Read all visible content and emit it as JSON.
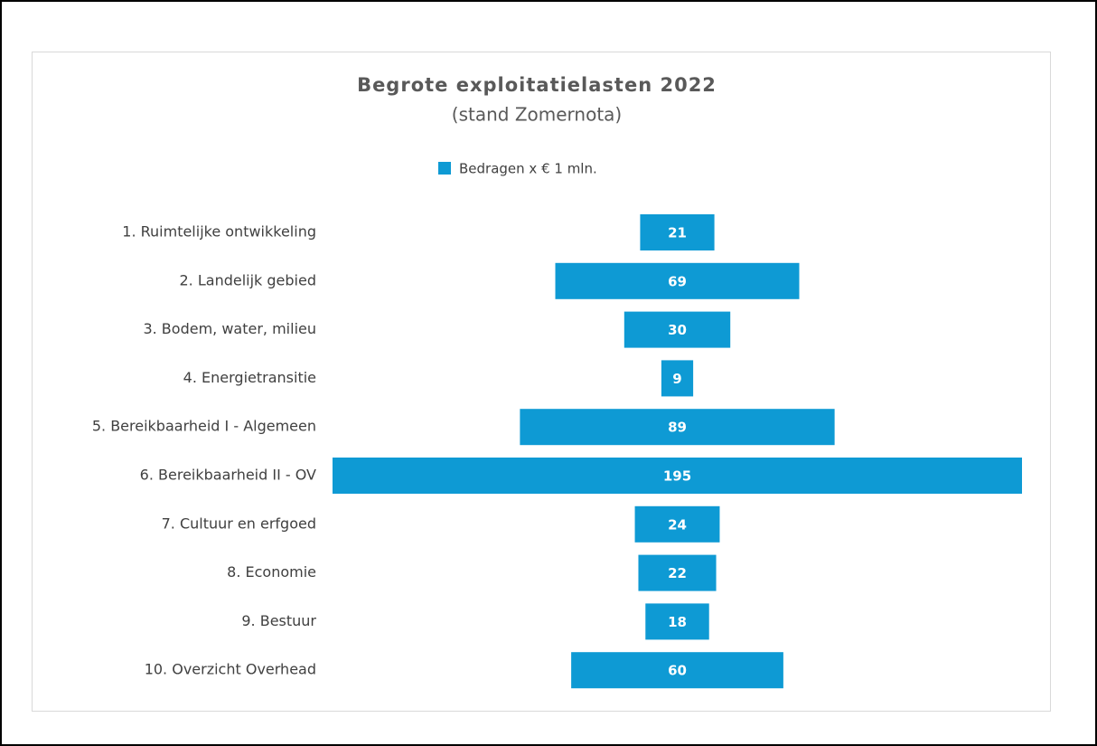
{
  "chart_data": {
    "type": "funnel",
    "title": "Begrote exploitatielasten 2022",
    "subtitle": "(stand Zomernota)",
    "categories": [
      "1. Ruimtelijke ontwikkeling",
      "2. Landelijk gebied",
      "3. Bodem, water, milieu",
      "4. Energietransitie",
      "5. Bereikbaarheid I - Algemeen",
      "6. Bereikbaarheid II - OV",
      "7. Cultuur en erfgoed",
      "8. Economie",
      "9. Bestuur",
      "10. Overzicht Overhead"
    ],
    "series": [
      {
        "name": "Bedragen x € 1 mln.",
        "color": "#0e9ad4",
        "values": [
          21,
          69,
          30,
          9,
          89,
          195,
          24,
          22,
          18,
          60
        ]
      }
    ],
    "legend": "top"
  }
}
